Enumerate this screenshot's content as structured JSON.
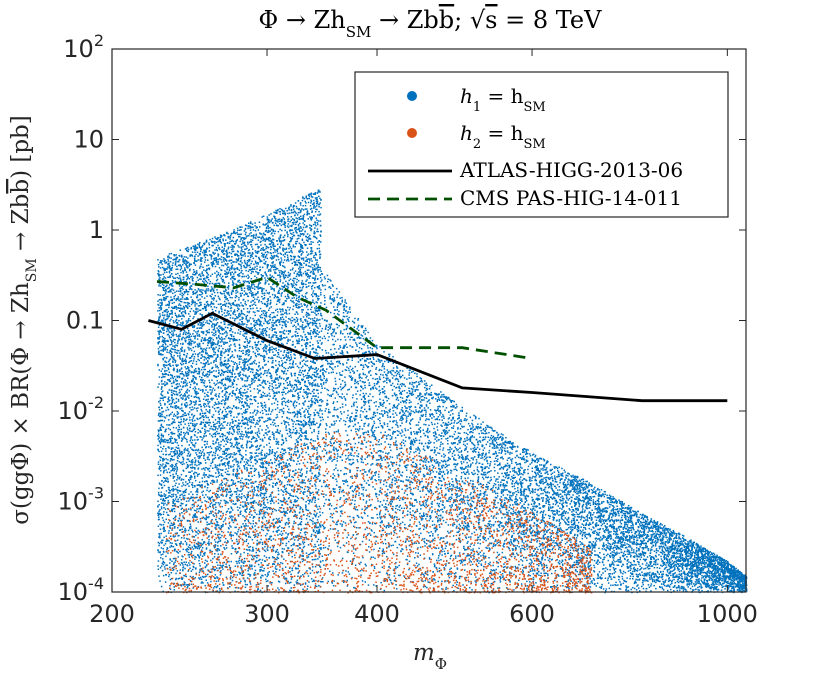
{
  "chart_data": {
    "type": "scatter",
    "title": "Φ → Zh_SM → Zbb̄; √s = 8 TeV",
    "title_parts": {
      "lhs": "Φ → Zh",
      "sub1": "SM",
      "mid": " → Zb",
      "bbar": "b",
      "semicolon": "; ",
      "sqrt": "√",
      "s": "s",
      "rhs": " = 8 TeV"
    },
    "xlabel": "m_Φ",
    "xlabel_parts": {
      "main": "m",
      "sub": "Φ"
    },
    "ylabel": "σ(ggΦ) × BR(Φ → Zh_SM → Zbb̄) [pb]",
    "ylabel_parts": {
      "pre": "σ(ggΦ) × BR(Φ → Zh",
      "sub": "SM",
      "mid": " → Zb",
      "bbar": "b",
      "post": ") [pb]"
    },
    "x_scale": "log",
    "y_scale": "log",
    "xlim": [
      200,
      1050
    ],
    "ylim": [
      0.0001,
      100
    ],
    "x_ticks": [
      {
        "value": 200,
        "label": "200"
      },
      {
        "value": 300,
        "label": "300"
      },
      {
        "value": 400,
        "label": "400"
      },
      {
        "value": 600,
        "label": "600"
      },
      {
        "value": 1000,
        "label": "1000"
      }
    ],
    "y_ticks": [
      {
        "value": 0.0001,
        "base": "10",
        "exp": "-4"
      },
      {
        "value": 0.001,
        "base": "10",
        "exp": "-3"
      },
      {
        "value": 0.01,
        "base": "10",
        "exp": "-2"
      },
      {
        "value": 0.1,
        "label": "0.1"
      },
      {
        "value": 1,
        "label": "1"
      },
      {
        "value": 10,
        "label": "10"
      },
      {
        "value": 100,
        "base": "10",
        "exp": "2"
      }
    ],
    "grid": false,
    "legend_position": "top-right",
    "series": [
      {
        "name": "h1 = hSM",
        "legend_main": "h",
        "legend_sub1": "1",
        "legend_eq": " = h",
        "legend_sub2": "SM",
        "type": "scatter",
        "color": "#0072BD",
        "density_regions": [
          {
            "description": "sharp cutoff at top-threshold",
            "x_range": [
              225,
              345
            ],
            "y_max_at_x_min": 0.5,
            "y_max_at_x_max": 3.0,
            "y_min": 0.0001
          },
          {
            "description": "falling upper edge above threshold",
            "upper_edge": [
              [
                345,
                0.4
              ],
              [
                400,
                0.055
              ],
              [
                500,
                0.011
              ],
              [
                600,
                0.0035
              ],
              [
                700,
                0.0016
              ],
              [
                800,
                0.00075
              ],
              [
                900,
                0.0004
              ],
              [
                1000,
                0.00022
              ],
              [
                1050,
                0.00015
              ]
            ],
            "y_min": 0.0001
          }
        ]
      },
      {
        "name": "h2 = hSM",
        "legend_main": "h",
        "legend_sub1": "2",
        "legend_eq": " = h",
        "legend_sub2": "SM",
        "type": "scatter",
        "color": "#D95319",
        "density_regions": [
          {
            "description": "orange points concentrated at low cross sections",
            "x_range": [
              230,
              700
            ],
            "upper_edge": [
              [
                230,
                0.001
              ],
              [
                300,
                0.003
              ],
              [
                350,
                0.006
              ],
              [
                400,
                0.006
              ],
              [
                500,
                0.002
              ],
              [
                600,
                0.0008
              ],
              [
                700,
                0.0003
              ]
            ],
            "y_min": 0.0001
          }
        ]
      },
      {
        "name": "ATLAS-HIGG-2013-06",
        "type": "line",
        "color": "#000000",
        "style": "solid",
        "x": [
          220,
          240,
          260,
          300,
          340,
          400,
          500,
          600,
          800,
          1000
        ],
        "y": [
          0.1,
          0.08,
          0.12,
          0.06,
          0.038,
          0.042,
          0.018,
          0.016,
          0.013,
          0.013
        ]
      },
      {
        "name": "CMS PAS-HIG-14-011",
        "type": "line",
        "color": "#005000",
        "style": "dashed",
        "x": [
          225,
          250,
          275,
          300,
          325,
          350,
          400,
          500,
          600
        ],
        "y": [
          0.27,
          0.25,
          0.23,
          0.3,
          0.18,
          0.13,
          0.05,
          0.05,
          0.038
        ]
      }
    ]
  }
}
